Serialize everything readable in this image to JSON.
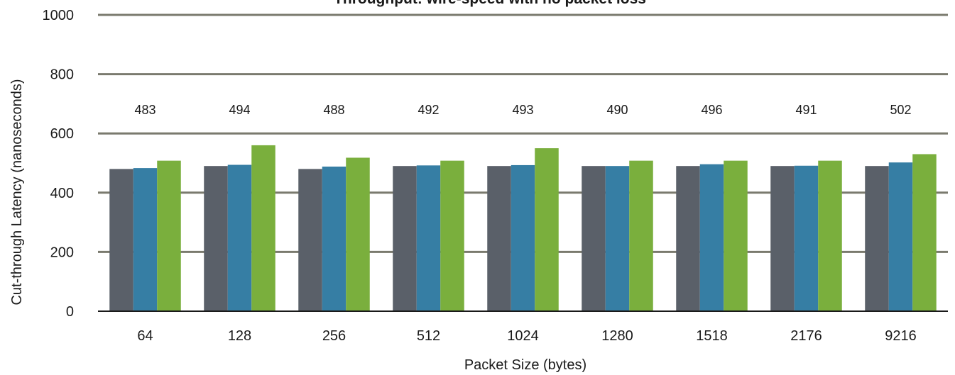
{
  "chart_data": {
    "type": "bar",
    "title": "Throughput: wire-speed with no packet loss",
    "xlabel": "Packet Size (bytes)",
    "ylabel": "Cut-through Latency (nanoseconds)",
    "ylim": [
      0,
      1000
    ],
    "yticks": [
      0,
      200,
      400,
      600,
      800,
      1000
    ],
    "grid": true,
    "categories": [
      "64",
      "128",
      "256",
      "512",
      "1024",
      "1280",
      "1518",
      "2176",
      "9216"
    ],
    "series": [
      {
        "values": [
          480,
          490,
          480,
          490,
          490,
          490,
          490,
          490,
          490
        ]
      },
      {
        "values": [
          483,
          494,
          488,
          492,
          493,
          490,
          496,
          491,
          502
        ]
      },
      {
        "values": [
          508,
          560,
          518,
          508,
          550,
          508,
          508,
          508,
          530
        ]
      }
    ],
    "data_labels": [
      "483",
      "494",
      "488",
      "492",
      "493",
      "490",
      "496",
      "491",
      "502"
    ],
    "colors": {
      "series": [
        "#5a6069",
        "#367ea4",
        "#7aaf3d"
      ],
      "gridline": "#7a7a6e",
      "axis": "#1a1a1a"
    }
  }
}
